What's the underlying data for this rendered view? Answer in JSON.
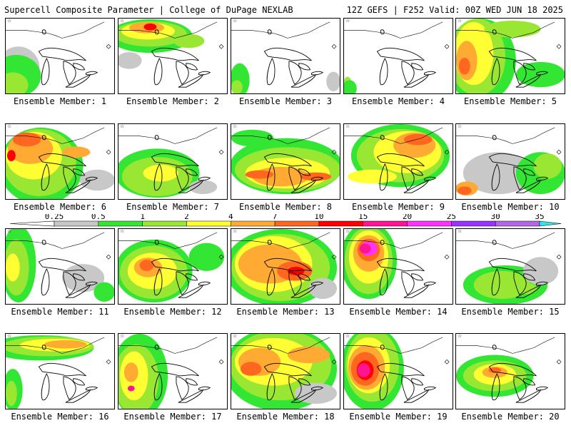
{
  "header": {
    "left": "Supercell Composite Parameter | College of DuPage NEXLAB",
    "right": "12Z GEFS | F252 Valid: 00Z WED JUN 18 2025"
  },
  "members": [
    {
      "label": "Ensemble Member: 1"
    },
    {
      "label": "Ensemble Member: 2"
    },
    {
      "label": "Ensemble Member: 3"
    },
    {
      "label": "Ensemble Member: 4"
    },
    {
      "label": "Ensemble Member: 5"
    },
    {
      "label": "Ensemble Member: 6"
    },
    {
      "label": "Ensemble Member: 7"
    },
    {
      "label": "Ensemble Member: 8"
    },
    {
      "label": "Ensemble Member: 9"
    },
    {
      "label": "Ensemble Member: 10"
    },
    {
      "label": "Ensemble Member: 11"
    },
    {
      "label": "Ensemble Member: 12"
    },
    {
      "label": "Ensemble Member: 13"
    },
    {
      "label": "Ensemble Member: 14"
    },
    {
      "label": "Ensemble Member: 15"
    },
    {
      "label": "Ensemble Member: 16"
    },
    {
      "label": "Ensemble Member: 17"
    },
    {
      "label": "Ensemble Member: 18"
    },
    {
      "label": "Ensemble Member: 19"
    },
    {
      "label": "Ensemble Member: 20"
    }
  ],
  "legend": {
    "ticks": [
      "0.25",
      "0.5",
      "1",
      "2",
      "4",
      "7",
      "10",
      "15",
      "20",
      "25",
      "30",
      "35"
    ],
    "colors": [
      "#c8c8c8",
      "#33e633",
      "#99e633",
      "#ffff33",
      "#ffaa33",
      "#ff6620",
      "#ff0000",
      "#ff1493",
      "#ff33ff",
      "#9933ff",
      "#b366e6",
      "#33e6e6"
    ]
  }
}
